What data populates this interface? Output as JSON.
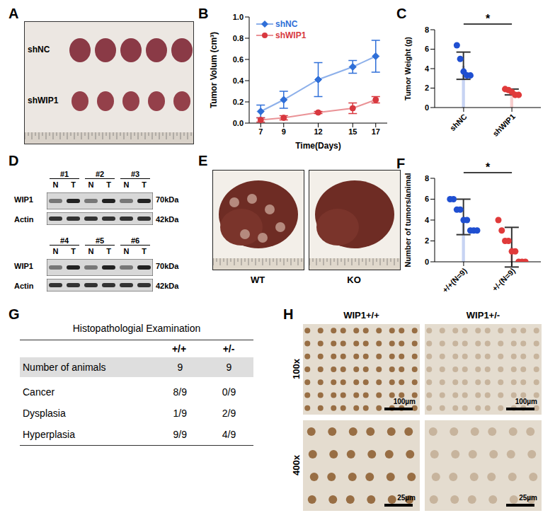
{
  "panels": {
    "A": {
      "label": "A",
      "rows": [
        "shNC",
        "shWIP1"
      ]
    },
    "D": {
      "label": "D",
      "blots": [
        {
          "samples": [
            "#1",
            "#2",
            "#3"
          ]
        },
        {
          "samples": [
            "#4",
            "#5",
            "#6"
          ]
        }
      ],
      "lanes": [
        "N",
        "T"
      ],
      "proteins": [
        {
          "name": "WIP1",
          "size": "70kDa"
        },
        {
          "name": "Actin",
          "size": "42kDa"
        }
      ]
    },
    "E": {
      "label": "E",
      "images": [
        "WT",
        "KO"
      ]
    },
    "G": {
      "label": "G",
      "title": "Histopathologial Examination",
      "columns": [
        "+/+",
        "+/-"
      ],
      "rows": [
        [
          "Number of animals",
          9,
          9
        ],
        [
          "Cancer",
          "8/9",
          "0/9"
        ],
        [
          "Dysplasia",
          "1/9",
          "2/9"
        ],
        [
          "Hyperplasia",
          "9/9",
          "4/9"
        ]
      ]
    },
    "H": {
      "label": "H",
      "columns": [
        "WIP1+/+",
        "WIP1+/-"
      ],
      "rows": [
        {
          "magnification": "100x",
          "scale_bar": "100µm"
        },
        {
          "magnification": "400x",
          "scale_bar": "25µm"
        }
      ]
    }
  },
  "chart_data": [
    {
      "panel_label": "B",
      "type": "line",
      "x_label": "Time(Days)",
      "y_label": "Tumor Volum (cm³)",
      "x": [
        7,
        9,
        12,
        15,
        17
      ],
      "xlim": [
        6,
        18
      ],
      "xticks": [
        7,
        9,
        12,
        15,
        17
      ],
      "ylim": [
        0,
        1
      ],
      "yticks": [
        {
          "value": 0,
          "label": "0.0"
        },
        0.2,
        0.4,
        0.6,
        0.8,
        {
          "value": 1,
          "label": "1.0"
        }
      ],
      "legend": "upper left",
      "series": [
        {
          "name": "shNC",
          "color": "#2f6fd8",
          "marker": "diamond",
          "values": [
            0.11,
            0.22,
            0.41,
            0.53,
            0.63
          ],
          "errors": [
            0.06,
            0.08,
            0.16,
            0.06,
            0.15
          ]
        },
        {
          "name": "shWIP1",
          "color": "#d8383f",
          "marker": "circle",
          "values": [
            0.03,
            0.05,
            0.1,
            0.14,
            0.22
          ],
          "errors": [
            0.02,
            0.02,
            0.01,
            0.05,
            0.03
          ]
        }
      ]
    },
    {
      "panel_label": "C",
      "type": "bar",
      "y_label": "Tumor Weight (g)",
      "categories": [
        "shNC",
        "shWIP1"
      ],
      "values": [
        4.3,
        1.6
      ],
      "errors": [
        1.4,
        0.3
      ],
      "points": [
        [
          6.4,
          5.0,
          3.7,
          3.3,
          3.3
        ],
        [
          1.9,
          1.8,
          1.6,
          1.3,
          1.3
        ]
      ],
      "colors": [
        "#1f4fd1",
        "#e03a3a"
      ],
      "ylim": [
        0,
        8
      ],
      "yticks": [
        0,
        2,
        4,
        6,
        8
      ],
      "annotations": [
        "*"
      ]
    },
    {
      "panel_label": "F",
      "type": "bar",
      "y_label": "Number of tumors/animal",
      "categories": [
        "+/+(N=9)",
        "+/-(N=9)"
      ],
      "values": [
        4.3,
        1.4
      ],
      "errors": [
        1.7,
        1.9
      ],
      "points": [
        [
          6,
          6,
          5,
          5,
          4,
          4,
          3,
          3,
          3
        ],
        [
          4,
          3,
          2,
          2,
          1,
          1,
          0,
          0,
          0
        ]
      ],
      "colors": [
        "#1f4fd1",
        "#e03a3a"
      ],
      "ylim": [
        0,
        8
      ],
      "yticks": [
        0,
        2,
        4,
        6,
        8
      ],
      "annotations": [
        "*"
      ]
    }
  ]
}
